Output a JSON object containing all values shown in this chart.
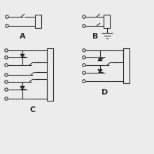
{
  "bg_color": "#ececec",
  "line_color": "#2a2a2a",
  "label_A": "A",
  "label_B": "B",
  "label_C": "C",
  "label_D": "D",
  "figsize": [
    2.2,
    2.2
  ],
  "dpi": 100
}
